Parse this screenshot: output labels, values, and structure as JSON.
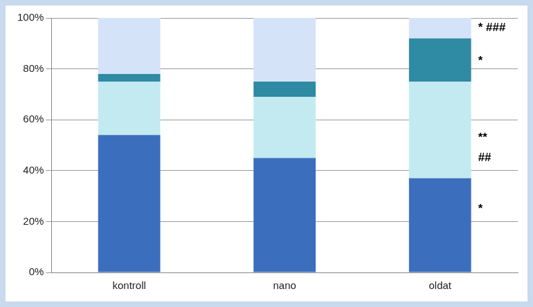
{
  "chart_data": {
    "type": "bar",
    "stacked": true,
    "categories": [
      "kontroll",
      "nano",
      "oldat"
    ],
    "series": [
      {
        "color": "#3b6fbd",
        "values": [
          54,
          45,
          37
        ]
      },
      {
        "color": "#c4eaf1",
        "values": [
          21,
          24,
          38
        ]
      },
      {
        "color": "#2f8aa3",
        "values": [
          3,
          6,
          17
        ]
      },
      {
        "color": "#d5e3f8",
        "values": [
          22,
          25,
          8
        ]
      }
    ],
    "ylim": [
      0,
      100
    ],
    "yticks": [
      {
        "value": 0,
        "label": "0%"
      },
      {
        "value": 20,
        "label": "20%"
      },
      {
        "value": 40,
        "label": "40%"
      },
      {
        "value": 60,
        "label": "60%"
      },
      {
        "value": 80,
        "label": "80%"
      },
      {
        "value": 100,
        "label": "100%"
      }
    ],
    "grid": true,
    "annotations": [
      {
        "text": "*",
        "category": "oldat",
        "y": 25
      },
      {
        "text": "**",
        "category": "oldat",
        "y": 53
      },
      {
        "text": "##",
        "category": "oldat",
        "y": 45
      },
      {
        "text": "*",
        "category": "oldat",
        "y": 83
      },
      {
        "text": "* ###",
        "category": "oldat",
        "y": 96
      }
    ]
  }
}
